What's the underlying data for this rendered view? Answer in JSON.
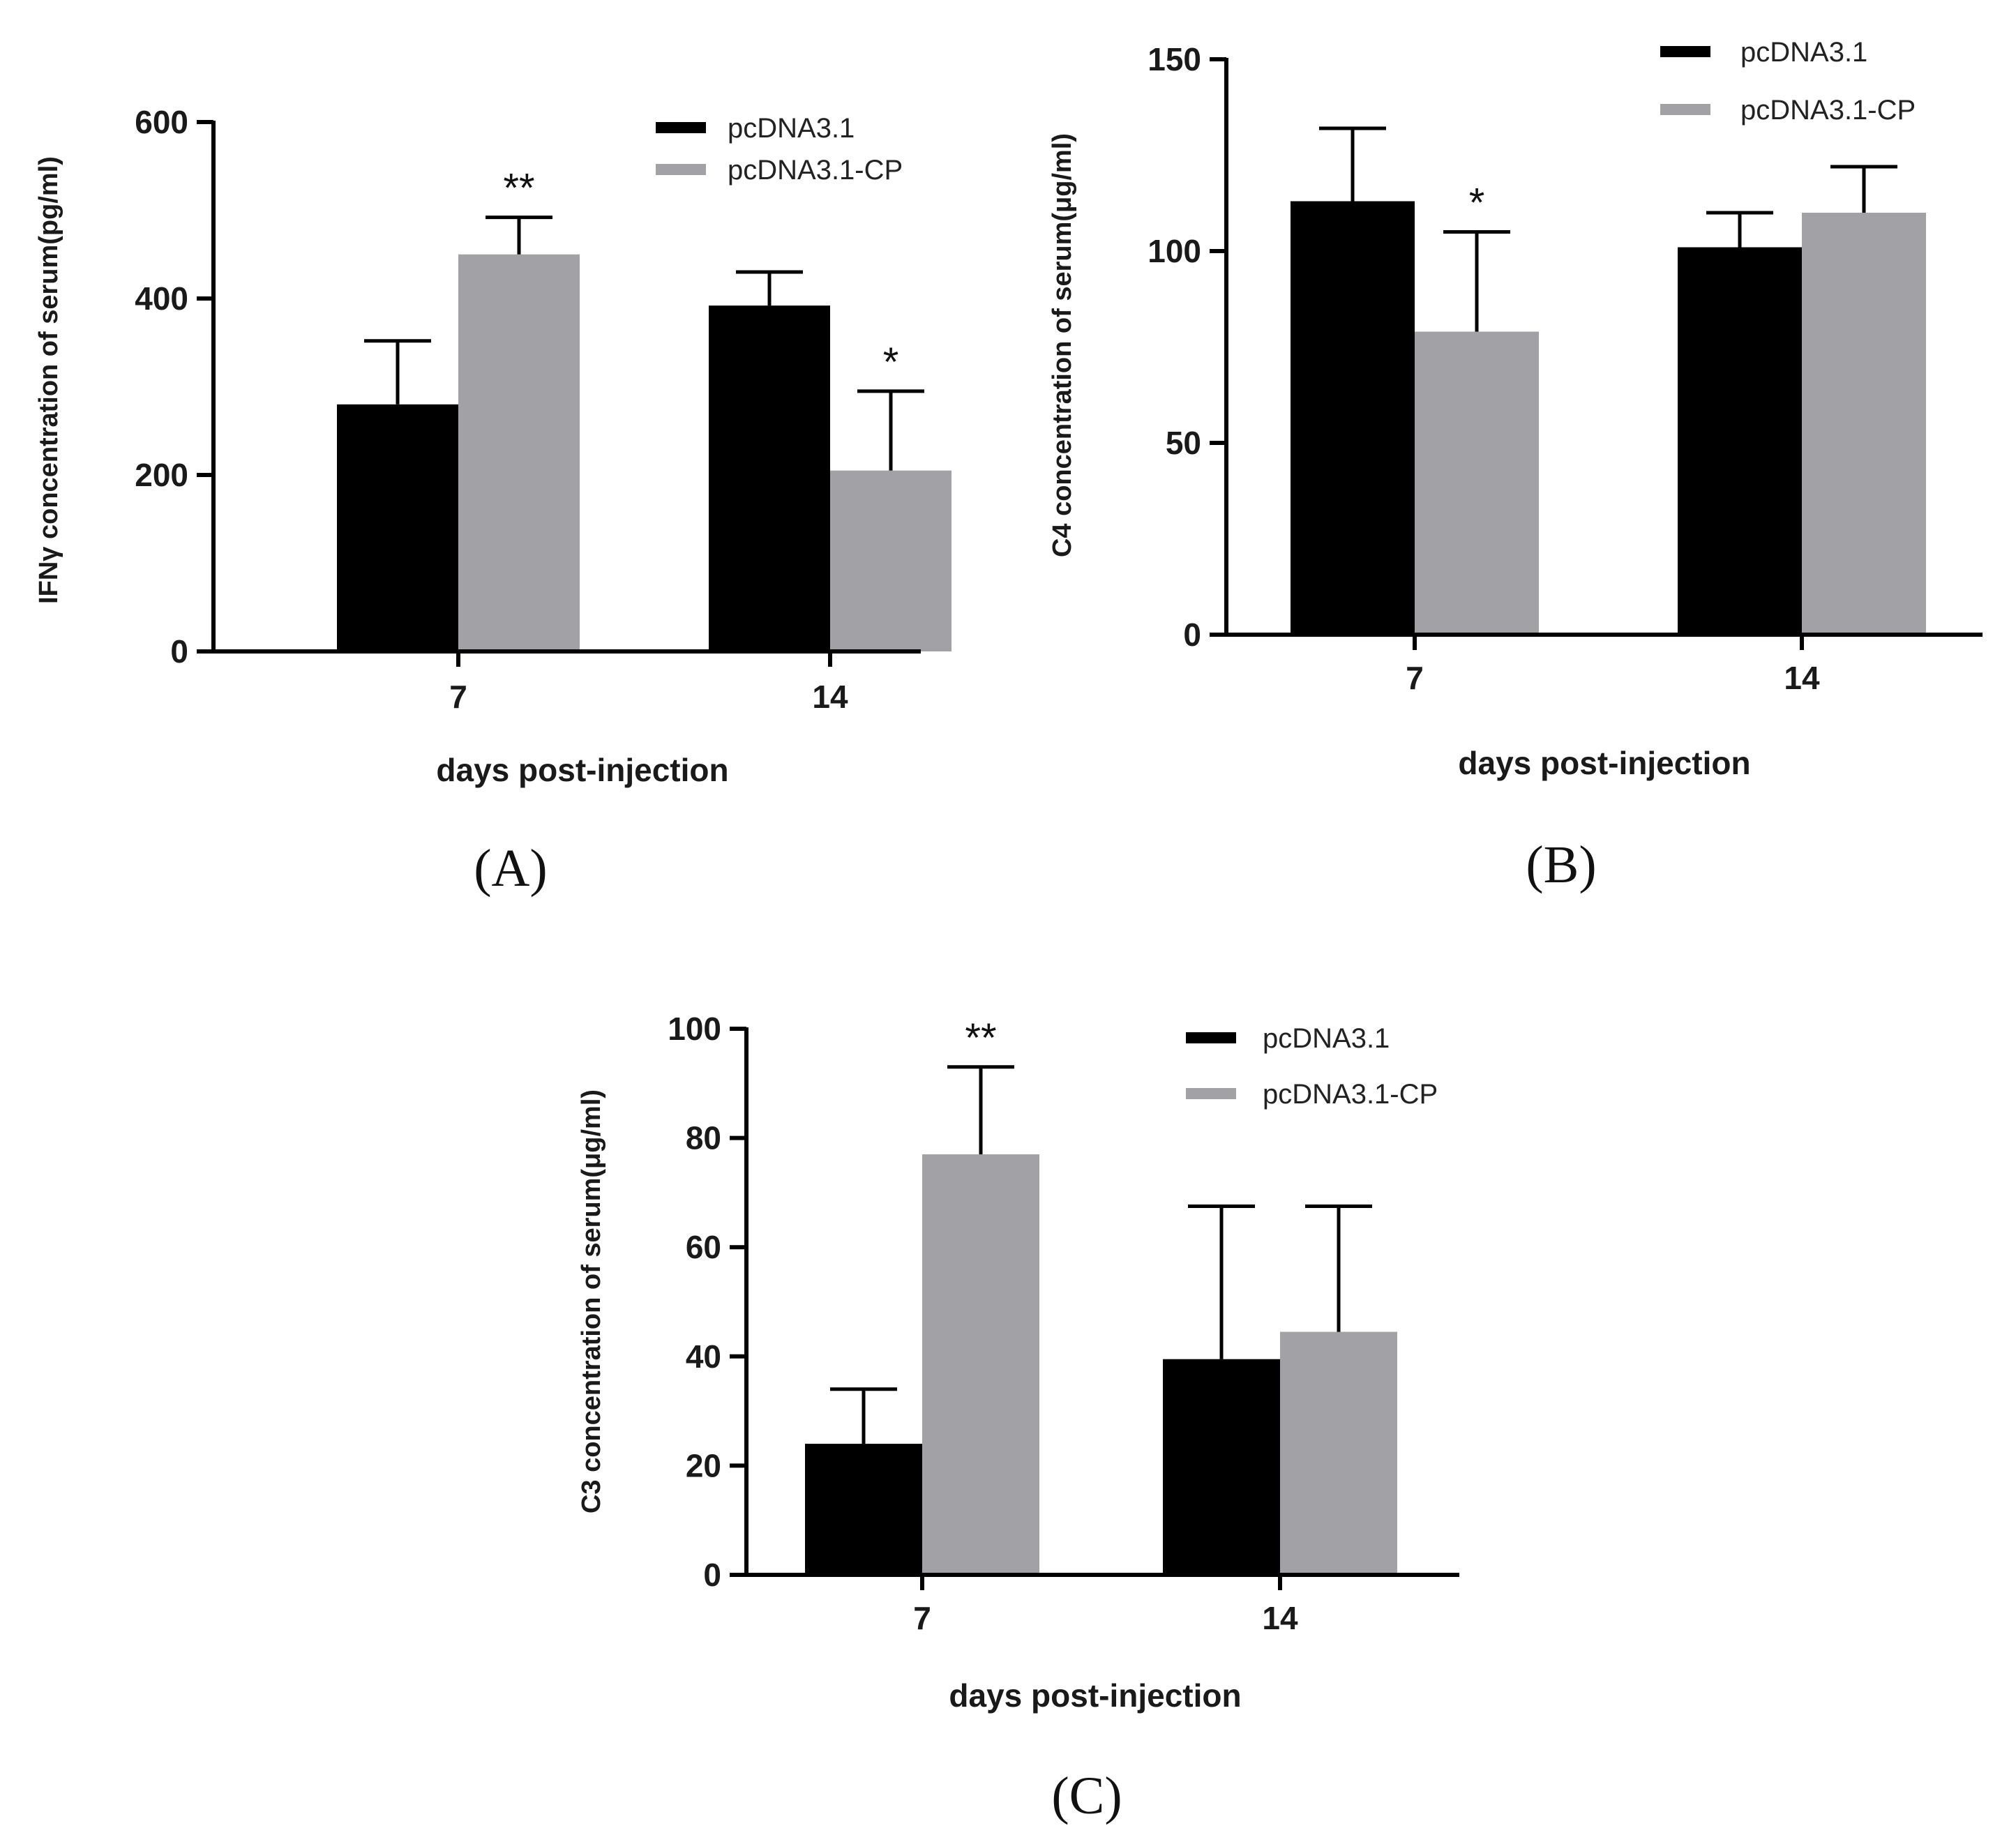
{
  "colors": {
    "pcDNA3.1": "#000000",
    "pcDNA3.1-CP": "#a2a2a6",
    "axis": "#000000"
  },
  "chart_data": [
    {
      "panel": "(A)",
      "type": "bar",
      "categories": [
        "7",
        "14"
      ],
      "series": [
        {
          "name": "pcDNA3.1",
          "values": [
            280,
            392
          ],
          "errors": [
            72,
            38
          ]
        },
        {
          "name": "pcDNA3.1-CP",
          "values": [
            450,
            205
          ],
          "errors": [
            42,
            90
          ]
        }
      ],
      "significance": [
        {
          "category": "7",
          "series": "pcDNA3.1-CP",
          "label": "**"
        },
        {
          "category": "14",
          "series": "pcDNA3.1-CP",
          "label": "*"
        }
      ],
      "xlabel": "days post-injection",
      "ylabel": "IFNγ concentration of serum(pg/ml)",
      "ylim": [
        0,
        600
      ],
      "yticks": [
        "0",
        "200",
        "400",
        "600"
      ],
      "legend": [
        "pcDNA3.1",
        "pcDNA3.1-CP"
      ],
      "legend_position": "top-right"
    },
    {
      "panel": "(B)",
      "type": "bar",
      "categories": [
        "7",
        "14"
      ],
      "series": [
        {
          "name": "pcDNA3.1",
          "values": [
            113,
            101
          ],
          "errors": [
            19,
            9
          ]
        },
        {
          "name": "pcDNA3.1-CP",
          "values": [
            79,
            110
          ],
          "errors": [
            26,
            12
          ]
        }
      ],
      "significance": [
        {
          "category": "7",
          "series": "pcDNA3.1-CP",
          "label": "*"
        }
      ],
      "xlabel": "days post-injection",
      "ylabel": "C4 concentration of serum(μg/ml)",
      "ylim": [
        0,
        150
      ],
      "yticks": [
        "0",
        "50",
        "100",
        "150"
      ],
      "legend": [
        "pcDNA3.1",
        "pcDNA3.1-CP"
      ],
      "legend_position": "top-right"
    },
    {
      "panel": "(C)",
      "type": "bar",
      "categories": [
        "7",
        "14"
      ],
      "series": [
        {
          "name": "pcDNA3.1",
          "values": [
            24,
            39.5
          ],
          "errors": [
            10,
            28
          ]
        },
        {
          "name": "pcDNA3.1-CP",
          "values": [
            77,
            44.5
          ],
          "errors": [
            16,
            23
          ]
        }
      ],
      "significance": [
        {
          "category": "7",
          "series": "pcDNA3.1-CP",
          "label": "**"
        }
      ],
      "xlabel": "days post-injection",
      "ylabel": "C3 concentration of serum(μg/ml)",
      "ylim": [
        0,
        100
      ],
      "yticks": [
        "0",
        "20",
        "40",
        "60",
        "80",
        "100"
      ],
      "legend": [
        "pcDNA3.1",
        "pcDNA3.1-CP"
      ],
      "legend_position": "top-right"
    }
  ]
}
